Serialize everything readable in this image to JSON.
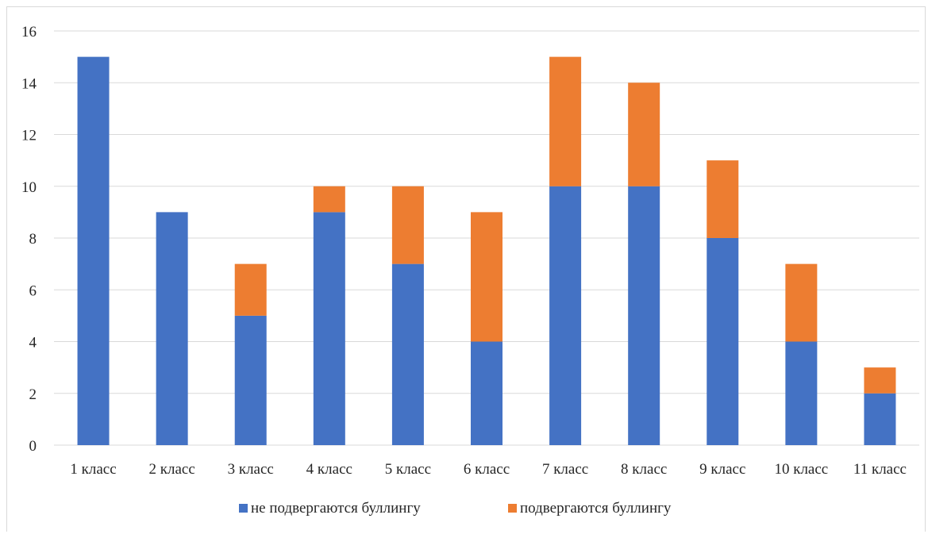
{
  "chart_data": {
    "type": "bar",
    "stacked": true,
    "categories": [
      "1 класс",
      "2 класс",
      "3 класс",
      "4 класс",
      "5 класс",
      "6 класс",
      "7 класс",
      "8 класс",
      "9 класс",
      "10 класс",
      "11 класс"
    ],
    "series": [
      {
        "name": "не подвергаются буллингу",
        "color": "#4472c4",
        "values": [
          15,
          9,
          5,
          9,
          7,
          4,
          10,
          10,
          8,
          4,
          2
        ]
      },
      {
        "name": "подвергаются буллингу",
        "color": "#ed7d31",
        "values": [
          0,
          0,
          2,
          1,
          3,
          5,
          5,
          4,
          3,
          3,
          1
        ]
      }
    ],
    "ylim": [
      0,
      16
    ],
    "yticks": [
      0,
      2,
      4,
      6,
      8,
      10,
      12,
      14,
      16
    ],
    "grid": true,
    "legend": "bottom",
    "grid_color": "#d9d9d9"
  }
}
